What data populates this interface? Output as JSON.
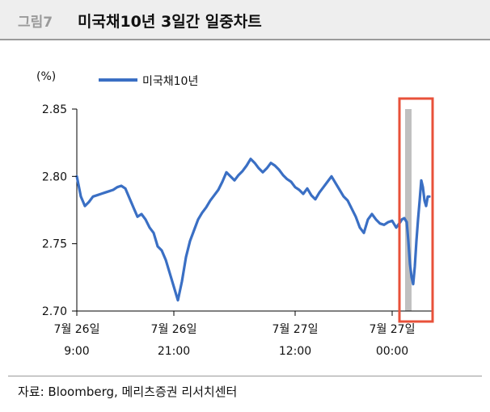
{
  "figure": {
    "number": "그림7",
    "title": "미국채10년 3일간 일중차트",
    "source": "자료: Bloomberg, 메리츠증권 리서치센터"
  },
  "chart_data": {
    "type": "line",
    "ylabel": "(%)",
    "ylim": [
      2.7,
      2.85
    ],
    "yticks": [
      "2.85",
      "2.80",
      "2.75",
      "2.70"
    ],
    "ytick_values": [
      2.85,
      2.8,
      2.75,
      2.7
    ],
    "xtick_labels": [
      [
        "7월 26일",
        "9:00"
      ],
      [
        "7월 26일",
        "21:00"
      ],
      [
        "7월 27일",
        "12:00"
      ],
      [
        "7월 27일",
        "00:00"
      ]
    ],
    "xtick_hours": [
      0,
      12,
      27,
      39
    ],
    "xlim": [
      0,
      44
    ],
    "highlight_band": {
      "x": [
        40.6,
        41.4
      ],
      "y": [
        2.7,
        2.85
      ],
      "color": "#c0c0c0"
    },
    "highlight_box": {
      "x": [
        39.9,
        44.0
      ],
      "color": "#e8513a"
    },
    "colors": {
      "line": "#3a6fc4",
      "highlight": "#e8513a"
    },
    "series": [
      {
        "name": "미국채10년",
        "x": [
          0,
          0.5,
          1,
          1.5,
          2,
          2.5,
          3,
          3.5,
          4,
          4.5,
          5,
          5.5,
          6,
          6.5,
          7,
          7.5,
          8,
          8.5,
          9,
          9.5,
          10,
          10.5,
          11,
          11.5,
          12,
          12.5,
          13,
          13.5,
          14,
          14.5,
          15,
          15.5,
          16,
          16.5,
          17,
          17.5,
          18,
          18.5,
          19,
          19.5,
          20,
          20.5,
          21,
          21.5,
          22,
          22.5,
          23,
          23.5,
          24,
          24.5,
          25,
          25.5,
          26,
          26.5,
          27,
          27.5,
          28,
          28.5,
          29,
          29.5,
          30,
          30.5,
          31,
          31.5,
          32,
          32.5,
          33,
          33.5,
          34,
          34.5,
          35,
          35.5,
          36,
          36.5,
          37,
          37.5,
          38,
          38.5,
          39,
          39.5,
          40,
          40.2,
          40.5,
          40.8,
          41,
          41.2,
          41.4,
          41.6,
          41.8,
          42,
          42.2,
          42.4,
          42.6,
          42.8,
          43,
          43.2,
          43.4,
          43.6
        ],
        "values": [
          2.8,
          2.785,
          2.778,
          2.781,
          2.785,
          2.786,
          2.787,
          2.788,
          2.789,
          2.79,
          2.792,
          2.793,
          2.791,
          2.784,
          2.777,
          2.77,
          2.772,
          2.768,
          2.762,
          2.758,
          2.748,
          2.745,
          2.738,
          2.728,
          2.718,
          2.708,
          2.722,
          2.74,
          2.752,
          2.76,
          2.768,
          2.773,
          2.777,
          2.782,
          2.786,
          2.79,
          2.796,
          2.803,
          2.8,
          2.797,
          2.801,
          2.804,
          2.808,
          2.813,
          2.81,
          2.806,
          2.803,
          2.806,
          2.81,
          2.808,
          2.805,
          2.801,
          2.798,
          2.796,
          2.792,
          2.79,
          2.787,
          2.791,
          2.786,
          2.783,
          2.788,
          2.792,
          2.796,
          2.8,
          2.795,
          2.79,
          2.785,
          2.782,
          2.776,
          2.77,
          2.762,
          2.758,
          2.768,
          2.772,
          2.768,
          2.765,
          2.764,
          2.766,
          2.767,
          2.762,
          2.766,
          2.768,
          2.769,
          2.766,
          2.752,
          2.735,
          2.725,
          2.72,
          2.733,
          2.752,
          2.768,
          2.782,
          2.797,
          2.792,
          2.782,
          2.778,
          2.785,
          2.785
        ]
      }
    ]
  }
}
